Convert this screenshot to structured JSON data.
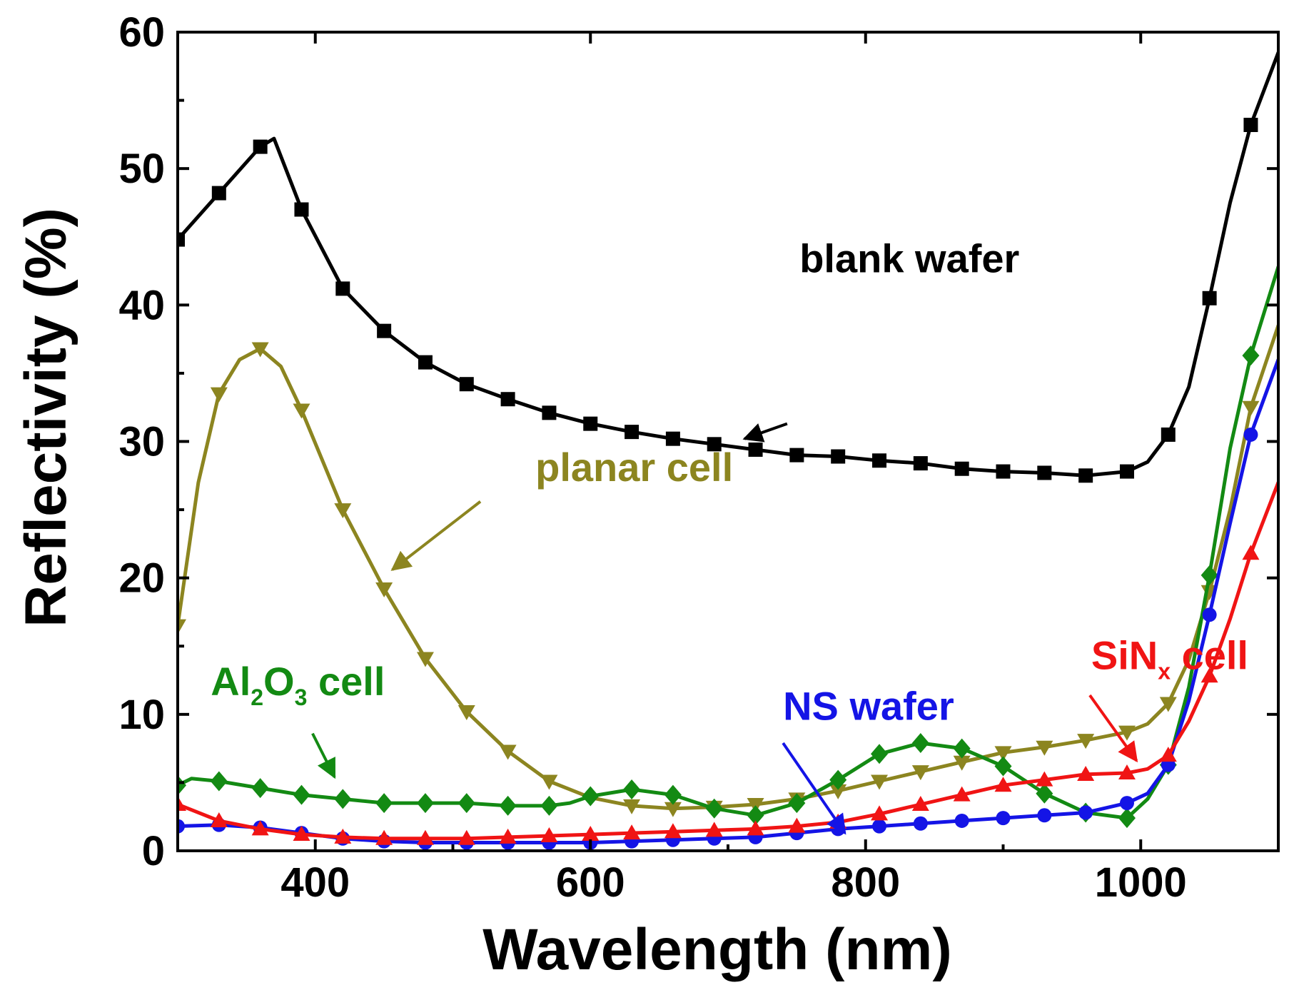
{
  "chart_data": {
    "type": "line",
    "title": "",
    "xlabel": "Wavelength (nm)",
    "ylabel": "Reflectivity (%)",
    "xlim": [
      300,
      1100
    ],
    "ylim": [
      0,
      60
    ],
    "x_ticks": [
      400,
      600,
      800,
      1000
    ],
    "y_ticks": [
      0,
      10,
      20,
      30,
      40,
      50,
      60
    ],
    "grid": false,
    "legend": "none (inline annotations)",
    "series": [
      {
        "name": "blank wafer",
        "color": "#000000",
        "marker": "square",
        "curve": [
          [
            300,
            44.8
          ],
          [
            330,
            48.2
          ],
          [
            360,
            51.6
          ],
          [
            370,
            52.2
          ],
          [
            390,
            47.0
          ],
          [
            420,
            41.2
          ],
          [
            450,
            38.1
          ],
          [
            480,
            35.8
          ],
          [
            510,
            34.2
          ],
          [
            540,
            33.1
          ],
          [
            570,
            32.1
          ],
          [
            600,
            31.3
          ],
          [
            630,
            30.7
          ],
          [
            660,
            30.2
          ],
          [
            690,
            29.8
          ],
          [
            720,
            29.4
          ],
          [
            750,
            29.0
          ],
          [
            780,
            28.9
          ],
          [
            810,
            28.6
          ],
          [
            840,
            28.4
          ],
          [
            870,
            28.0
          ],
          [
            900,
            27.8
          ],
          [
            930,
            27.7
          ],
          [
            960,
            27.5
          ],
          [
            990,
            27.8
          ],
          [
            1005,
            28.5
          ],
          [
            1020,
            30.5
          ],
          [
            1035,
            34.0
          ],
          [
            1050,
            40.5
          ],
          [
            1065,
            47.5
          ],
          [
            1080,
            53.2
          ],
          [
            1100,
            58.5
          ]
        ],
        "markers_x": [
          300,
          330,
          360,
          390,
          420,
          450,
          480,
          510,
          540,
          570,
          600,
          630,
          660,
          690,
          720,
          750,
          780,
          810,
          840,
          870,
          900,
          930,
          960,
          990,
          1020,
          1050,
          1080
        ]
      },
      {
        "name": "planar cell",
        "color": "#8c8520",
        "marker": "triangle-down",
        "curve": [
          [
            300,
            16.5
          ],
          [
            315,
            27.0
          ],
          [
            330,
            33.5
          ],
          [
            345,
            36.0
          ],
          [
            360,
            36.8
          ],
          [
            375,
            35.5
          ],
          [
            390,
            32.3
          ],
          [
            420,
            25.0
          ],
          [
            450,
            19.2
          ],
          [
            480,
            14.1
          ],
          [
            510,
            10.2
          ],
          [
            540,
            7.3
          ],
          [
            570,
            5.1
          ],
          [
            600,
            3.9
          ],
          [
            630,
            3.3
          ],
          [
            660,
            3.1
          ],
          [
            690,
            3.2
          ],
          [
            720,
            3.4
          ],
          [
            750,
            3.8
          ],
          [
            780,
            4.4
          ],
          [
            810,
            5.1
          ],
          [
            840,
            5.8
          ],
          [
            870,
            6.5
          ],
          [
            900,
            7.2
          ],
          [
            930,
            7.6
          ],
          [
            960,
            8.1
          ],
          [
            990,
            8.7
          ],
          [
            1005,
            9.3
          ],
          [
            1020,
            10.8
          ],
          [
            1035,
            14.0
          ],
          [
            1050,
            19.0
          ],
          [
            1065,
            25.0
          ],
          [
            1080,
            32.5
          ],
          [
            1100,
            38.5
          ]
        ],
        "markers_x": [
          300,
          330,
          360,
          390,
          420,
          450,
          480,
          510,
          540,
          570,
          630,
          660,
          690,
          720,
          750,
          780,
          810,
          840,
          870,
          900,
          930,
          960,
          990,
          1020,
          1050,
          1080
        ]
      },
      {
        "name": "Al2O3 cell",
        "color": "#138a13",
        "marker": "diamond",
        "curve": [
          [
            300,
            4.8
          ],
          [
            310,
            5.3
          ],
          [
            330,
            5.1
          ],
          [
            360,
            4.6
          ],
          [
            390,
            4.1
          ],
          [
            420,
            3.8
          ],
          [
            450,
            3.5
          ],
          [
            480,
            3.5
          ],
          [
            510,
            3.5
          ],
          [
            540,
            3.3
          ],
          [
            570,
            3.3
          ],
          [
            585,
            3.5
          ],
          [
            600,
            4.0
          ],
          [
            630,
            4.5
          ],
          [
            660,
            4.1
          ],
          [
            690,
            3.1
          ],
          [
            720,
            2.6
          ],
          [
            750,
            3.5
          ],
          [
            780,
            5.2
          ],
          [
            810,
            7.1
          ],
          [
            840,
            7.9
          ],
          [
            870,
            7.5
          ],
          [
            900,
            6.2
          ],
          [
            915,
            5.2
          ],
          [
            930,
            4.2
          ],
          [
            960,
            2.8
          ],
          [
            990,
            2.4
          ],
          [
            1005,
            3.8
          ],
          [
            1020,
            6.3
          ],
          [
            1035,
            12.0
          ],
          [
            1050,
            20.2
          ],
          [
            1065,
            29.5
          ],
          [
            1080,
            36.3
          ],
          [
            1100,
            42.8
          ]
        ],
        "markers_x": [
          300,
          330,
          360,
          390,
          420,
          450,
          480,
          510,
          540,
          570,
          600,
          630,
          660,
          690,
          720,
          750,
          780,
          810,
          840,
          870,
          900,
          930,
          960,
          990,
          1020,
          1050,
          1080
        ]
      },
      {
        "name": "NS wafer",
        "color": "#1414e6",
        "marker": "circle",
        "curve": [
          [
            300,
            1.8
          ],
          [
            330,
            1.9
          ],
          [
            360,
            1.7
          ],
          [
            390,
            1.3
          ],
          [
            420,
            0.9
          ],
          [
            450,
            0.7
          ],
          [
            480,
            0.6
          ],
          [
            510,
            0.6
          ],
          [
            540,
            0.6
          ],
          [
            570,
            0.6
          ],
          [
            600,
            0.6
          ],
          [
            630,
            0.7
          ],
          [
            660,
            0.8
          ],
          [
            690,
            0.9
          ],
          [
            720,
            1.0
          ],
          [
            750,
            1.3
          ],
          [
            780,
            1.6
          ],
          [
            810,
            1.8
          ],
          [
            840,
            2.0
          ],
          [
            870,
            2.2
          ],
          [
            900,
            2.4
          ],
          [
            930,
            2.6
          ],
          [
            960,
            2.8
          ],
          [
            990,
            3.5
          ],
          [
            1005,
            4.2
          ],
          [
            1020,
            6.3
          ],
          [
            1035,
            11.0
          ],
          [
            1050,
            17.3
          ],
          [
            1065,
            24.0
          ],
          [
            1080,
            30.5
          ],
          [
            1100,
            36.0
          ]
        ],
        "markers_x": [
          300,
          330,
          360,
          390,
          420,
          450,
          480,
          510,
          540,
          570,
          600,
          630,
          660,
          690,
          720,
          750,
          780,
          810,
          840,
          870,
          900,
          930,
          960,
          990,
          1020,
          1050,
          1080
        ]
      },
      {
        "name": "SiNx cell",
        "color": "#f01414",
        "marker": "triangle-up",
        "curve": [
          [
            300,
            3.4
          ],
          [
            330,
            2.2
          ],
          [
            360,
            1.6
          ],
          [
            390,
            1.2
          ],
          [
            420,
            1.0
          ],
          [
            450,
            0.9
          ],
          [
            480,
            0.9
          ],
          [
            510,
            0.9
          ],
          [
            540,
            1.0
          ],
          [
            570,
            1.1
          ],
          [
            600,
            1.2
          ],
          [
            630,
            1.3
          ],
          [
            660,
            1.4
          ],
          [
            690,
            1.5
          ],
          [
            720,
            1.6
          ],
          [
            750,
            1.8
          ],
          [
            780,
            2.1
          ],
          [
            810,
            2.7
          ],
          [
            840,
            3.4
          ],
          [
            870,
            4.1
          ],
          [
            900,
            4.8
          ],
          [
            930,
            5.2
          ],
          [
            960,
            5.6
          ],
          [
            990,
            5.7
          ],
          [
            1005,
            6.0
          ],
          [
            1020,
            7.0
          ],
          [
            1035,
            9.5
          ],
          [
            1050,
            12.8
          ],
          [
            1065,
            17.0
          ],
          [
            1080,
            21.8
          ],
          [
            1100,
            27.0
          ]
        ],
        "markers_x": [
          300,
          330,
          360,
          390,
          420,
          450,
          480,
          510,
          540,
          570,
          600,
          630,
          660,
          690,
          720,
          750,
          780,
          810,
          840,
          870,
          900,
          930,
          960,
          990,
          1020,
          1050,
          1080
        ]
      }
    ],
    "annotations": [
      {
        "series": "blank wafer",
        "text": "blank wafer",
        "color": "#000000",
        "label_at": [
          752,
          42.4
        ],
        "arrow_from": [
          743,
          31.3
        ],
        "arrow_to": [
          712,
          30.2
        ]
      },
      {
        "series": "planar cell",
        "text": "planar cell",
        "color": "#8c8520",
        "label_at": [
          560,
          27.1
        ],
        "arrow_from": [
          520,
          25.6
        ],
        "arrow_to": [
          456,
          20.6
        ]
      },
      {
        "series": "Al2O3 cell",
        "text_main": "Al",
        "sub1": "2",
        "text_mid": "O",
        "sub2": "3",
        "text_end": " cell",
        "color": "#138a13",
        "label_at": [
          324,
          11.4
        ],
        "arrow_from": [
          398,
          8.6
        ],
        "arrow_to": [
          414,
          5.4
        ]
      },
      {
        "series": "NS wafer",
        "text": "NS wafer",
        "color": "#1414e6",
        "label_at": [
          740,
          9.6
        ],
        "arrow_from": [
          740,
          7.9
        ],
        "arrow_to": [
          785,
          1.3
        ]
      },
      {
        "series": "SiNx cell",
        "text_main": "SiN",
        "sub1": "x",
        "text_end": " cell",
        "color": "#f01414",
        "label_at": [
          964,
          13.3
        ],
        "arrow_from": [
          963,
          11.4
        ],
        "arrow_to": [
          997,
          6.6
        ]
      }
    ]
  }
}
